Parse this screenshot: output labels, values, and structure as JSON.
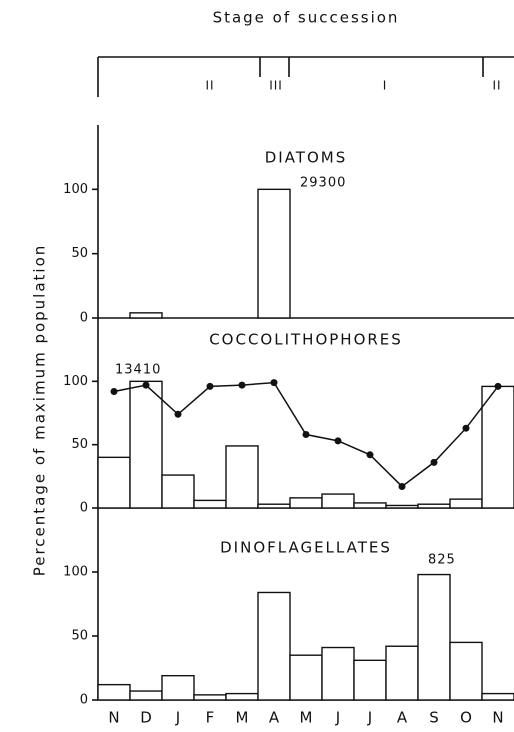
{
  "title": "Stage of succession",
  "stages": [
    "II",
    "III",
    "I",
    "II"
  ],
  "y_label": "Percentage of maximum population",
  "chart_data": [
    {
      "type": "bar",
      "title": "DIATOMS",
      "annotation": "29300",
      "values": [
        0,
        4,
        0,
        0,
        0,
        100,
        0,
        0,
        0,
        0,
        0,
        0,
        0
      ],
      "ylim": [
        0,
        150
      ],
      "yticks": [
        0,
        50,
        100
      ]
    },
    {
      "type": "bar",
      "title": "COCCOLITHOPHORES",
      "annotation": "13410",
      "values": [
        40,
        100,
        26,
        6,
        49,
        3,
        8,
        11,
        4,
        2,
        3,
        7,
        96
      ],
      "line_values": [
        92,
        97,
        74,
        96,
        97,
        99,
        58,
        53,
        42,
        17,
        36,
        63,
        96
      ],
      "ylim": [
        0,
        150
      ],
      "yticks": [
        0,
        50,
        100
      ]
    },
    {
      "type": "bar",
      "title": "DINOFLAGELLATES",
      "annotation": "825",
      "categories": [
        "N",
        "D",
        "J",
        "F",
        "M",
        "A",
        "M",
        "J",
        "J",
        "A",
        "S",
        "O",
        "N"
      ],
      "values": [
        12,
        7,
        19,
        4,
        5,
        84,
        35,
        41,
        31,
        42,
        98,
        45,
        5
      ],
      "ylim": [
        0,
        150
      ],
      "yticks": [
        0,
        50,
        100
      ]
    }
  ]
}
